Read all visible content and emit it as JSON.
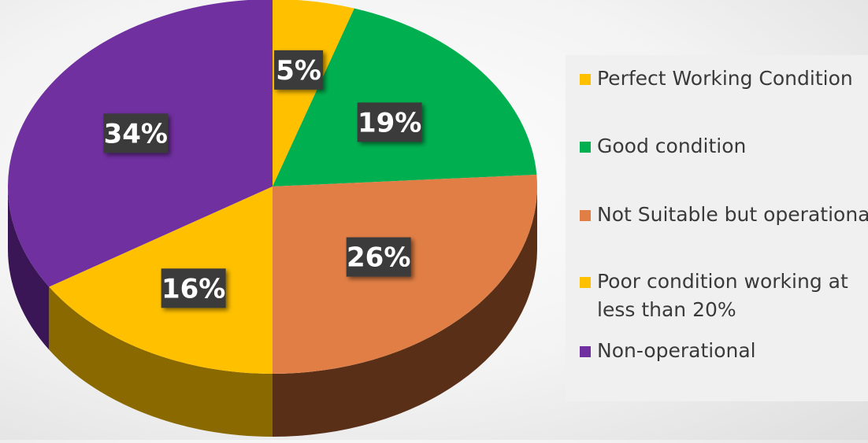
{
  "chart_data": {
    "type": "pie",
    "title": "",
    "categories": [
      "Perfect Working Condition",
      "Good condition",
      "Not Suitable but operational",
      "Poor condition working at less than 20%",
      "Non-operational"
    ],
    "values": [
      5,
      19,
      26,
      16,
      34
    ],
    "data_labels": [
      "5%",
      "19%",
      "26%",
      "16%",
      "34%"
    ],
    "colors": [
      "#FFC000",
      "#00B050",
      "#E07E45",
      "#FFC000",
      "#7030A0"
    ],
    "side_colors": [
      "#8a6a00",
      "#1c5c2e",
      "#5a2f17",
      "#8a6a00",
      "#3b1656"
    ],
    "label_style": "dark boxes with white bold text",
    "style": "3D tilted pie",
    "legend_position": "right"
  }
}
